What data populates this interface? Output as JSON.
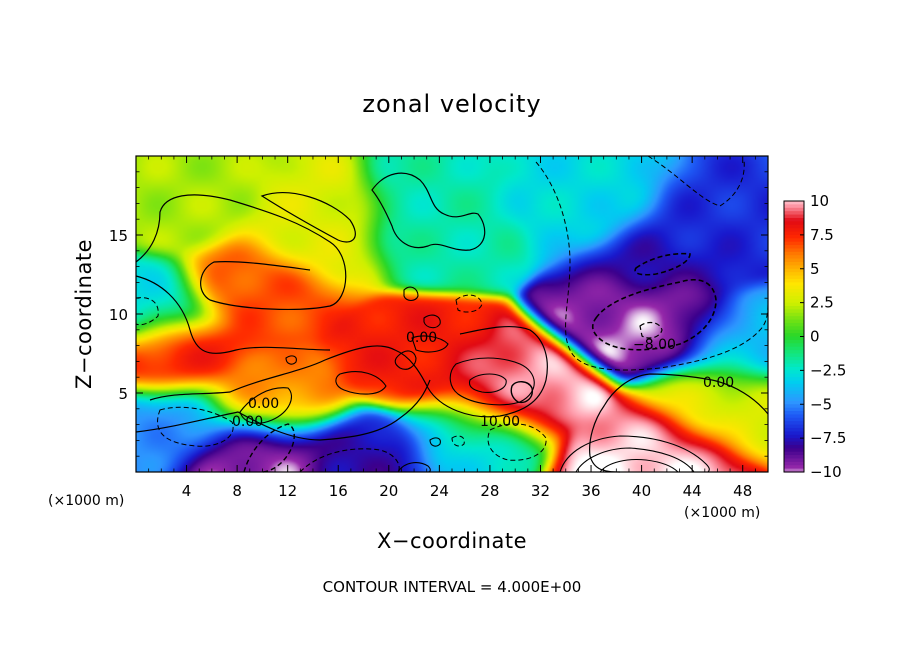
{
  "chart_data": {
    "type": "heatmap",
    "title": "zonal velocity",
    "xlabel": "X−coordinate",
    "ylabel": "Z−coordinate",
    "x_unit": "(×1000 m)",
    "y_unit": "(×1000 m)",
    "footer": "CONTOUR INTERVAL = 4.000E+00",
    "xlim": [
      0,
      50
    ],
    "ylim": [
      0,
      20
    ],
    "x_ticks": [
      4,
      8,
      12,
      16,
      20,
      24,
      28,
      32,
      36,
      40,
      44,
      48
    ],
    "y_ticks": [
      5,
      10,
      15
    ],
    "colorbar": {
      "min": -10,
      "max": 10,
      "ticks": [
        10,
        7.5,
        5,
        2.5,
        0,
        -2.5,
        -5,
        -7.5,
        -10
      ],
      "tick_labels": [
        "10",
        "7.5",
        "5",
        "2.5",
        "0",
        "−2.5",
        "−5",
        "−7.5",
        "−10"
      ]
    },
    "contour_interval": 4.0,
    "contour_labels": [
      "0.00",
      "0.00",
      "0.00",
      "0.00",
      "10.00",
      "−8.00"
    ],
    "features": [
      {
        "x": 9.5,
        "z": 11.8,
        "value": 7
      },
      {
        "x": 3,
        "z": 7.4,
        "value": 8
      },
      {
        "x": 10.5,
        "z": 4.3,
        "value": 6
      },
      {
        "x": 14,
        "z": 15,
        "value": 3
      },
      {
        "x": 3,
        "z": 17,
        "value": 2
      },
      {
        "x": 22.3,
        "z": 7.2,
        "value": 8
      },
      {
        "x": 29,
        "z": 5.3,
        "value": 9
      },
      {
        "x": 30.3,
        "z": 5.0,
        "value": 11
      },
      {
        "x": 40.5,
        "z": 1.2,
        "value": 9
      },
      {
        "x": 40,
        "z": 0.6,
        "value": 12
      },
      {
        "x": 9.8,
        "z": 1.2,
        "value": -9
      },
      {
        "x": 10,
        "z": 0.9,
        "value": -11
      },
      {
        "x": 17.5,
        "z": 0.8,
        "value": -8
      },
      {
        "x": 40.5,
        "z": 10.0,
        "value": -9
      },
      {
        "x": 40.5,
        "z": 9.3,
        "value": -11
      },
      {
        "x": 41.5,
        "z": 13.5,
        "value": -8
      },
      {
        "x": 44.5,
        "z": 15.5,
        "value": -7
      },
      {
        "x": 48,
        "z": 8,
        "value": -4
      },
      {
        "x": 3,
        "z": 3,
        "value": -5
      },
      {
        "x": 27,
        "z": 2.5,
        "value": -3
      },
      {
        "x": 36,
        "z": 17,
        "value": -3
      },
      {
        "x": 24,
        "z": 15.5,
        "value": -2
      },
      {
        "x": 0.5,
        "z": 10.5,
        "value": -3
      },
      {
        "x": 46.5,
        "z": 4.5,
        "value": 3
      }
    ]
  }
}
